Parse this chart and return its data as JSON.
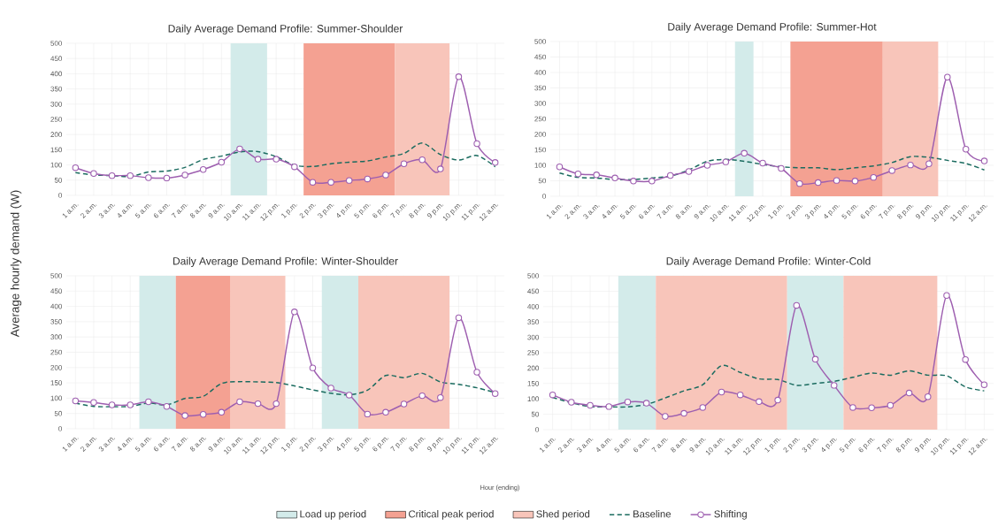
{
  "chart_data": [
    {
      "type": "line",
      "title": "Daily Average Demand Profile: Summer-Shoulder",
      "ylabel": "Average hourly demand (W)",
      "categories": [
        "1 a.m.",
        "2 a.m.",
        "3 a.m.",
        "4 a.m.",
        "5 a.m.",
        "6 a.m.",
        "7 a.m.",
        "8 a.m.",
        "9 a.m.",
        "10 a.m.",
        "11 a.m.",
        "12 p.m.",
        "1 p.m.",
        "2 p.m.",
        "3 p.m.",
        "4 p.m.",
        "5 p.m.",
        "6 p.m.",
        "7 p.m.",
        "8 p.m.",
        "9 p.m.",
        "10 p.m.",
        "11 p.m.",
        "12 a.m."
      ],
      "series": [
        {
          "name": "Baseline",
          "color": "#1a6b5f",
          "line_style": "dashed",
          "marker": "none",
          "values": [
            75,
            67,
            65,
            62,
            77,
            80,
            92,
            118,
            129,
            143,
            144,
            127,
            99,
            95,
            104,
            109,
            113,
            126,
            138,
            172,
            134,
            116,
            131,
            94
          ]
        },
        {
          "name": "Shifting",
          "color": "#9e5fb0",
          "line_style": "solid",
          "marker": "circle",
          "values": [
            91,
            72,
            65,
            65,
            58,
            57,
            67,
            85,
            109,
            153,
            119,
            119,
            94,
            43,
            43,
            49,
            54,
            67,
            104,
            117,
            87,
            390,
            170,
            108
          ]
        }
      ],
      "bands": [
        {
          "axis": "x",
          "from": "10 a.m.",
          "to": "11 a.m.",
          "label": "Load up period",
          "color": "#d3ebea"
        },
        {
          "axis": "x",
          "from": "2 p.m.",
          "to": "6 p.m.",
          "label": "Critical peak period",
          "color": "#f4a192"
        },
        {
          "axis": "x",
          "from": "7 p.m.",
          "to": "9 p.m.",
          "label": "Shed period",
          "color": "#f8c5ba"
        }
      ],
      "ylim": [
        0,
        500
      ],
      "yticks": [
        0,
        50,
        100,
        150,
        200,
        250,
        300,
        350,
        400,
        450,
        500
      ],
      "grid": true,
      "legend": "bottom"
    },
    {
      "type": "line",
      "title": "Daily Average Demand Profile: Summer-Hot",
      "categories": [
        "1 a.m.",
        "2 a.m.",
        "3 a.m.",
        "4 a.m.",
        "5 a.m.",
        "6 a.m.",
        "7 a.m.",
        "8 a.m.",
        "9 a.m.",
        "10 a.m.",
        "11 a.m.",
        "12 p.m.",
        "1 p.m.",
        "2 p.m.",
        "3 p.m.",
        "4 p.m.",
        "5 p.m.",
        "6 p.m.",
        "7 p.m.",
        "8 p.m.",
        "9 p.m.",
        "10 p.m.",
        "11 p.m.",
        "12 a.m."
      ],
      "series": [
        {
          "color": "#1a6b5f",
          "line_style": "dashed",
          "marker": "none",
          "values": [
            75,
            61,
            59,
            54,
            54,
            59,
            65,
            85,
            113,
            119,
            113,
            103,
            95,
            92,
            92,
            86,
            92,
            98,
            109,
            128,
            126,
            116,
            106,
            85
          ]
        },
        {
          "color": "#9e5fb0",
          "line_style": "solid",
          "marker": "circle",
          "values": [
            95,
            72,
            69,
            59,
            49,
            49,
            67,
            80,
            100,
            111,
            139,
            107,
            90,
            41,
            44,
            51,
            49,
            61,
            83,
            101,
            105,
            385,
            152,
            114
          ]
        }
      ],
      "bands": [
        {
          "axis": "x",
          "from": "11 a.m.",
          "to": "11 a.m.",
          "color": "#d3ebea"
        },
        {
          "axis": "x",
          "from": "2 p.m.",
          "to": "6 p.m.",
          "color": "#f4a192"
        },
        {
          "axis": "x",
          "from": "7 p.m.",
          "to": "9 p.m.",
          "color": "#f8c5ba"
        }
      ],
      "ylim": [
        0,
        500
      ],
      "yticks": [
        0,
        50,
        100,
        150,
        200,
        250,
        300,
        350,
        400,
        450,
        500
      ],
      "grid": true
    },
    {
      "type": "line",
      "title": "Daily Average Demand Profile: Winter-Shoulder",
      "xlabel": "Hour (ending)",
      "categories": [
        "1 a.m.",
        "2 a.m.",
        "3 a.m.",
        "4 a.m.",
        "5 a.m.",
        "6 a.m.",
        "7 a.m.",
        "8 a.m.",
        "9 a.m.",
        "10 a.m.",
        "11 a.m.",
        "12 p.m.",
        "1 p.m.",
        "2 p.m.",
        "3 p.m.",
        "4 p.m.",
        "5 p.m.",
        "6 p.m.",
        "7 p.m.",
        "8 p.m.",
        "9 p.m.",
        "10 p.m.",
        "11 p.m.",
        "12 a.m."
      ],
      "series": [
        {
          "color": "#1a6b5f",
          "line_style": "dashed",
          "marker": "none",
          "values": [
            84,
            73,
            72,
            73,
            84,
            78,
            99,
            106,
            148,
            154,
            153,
            151,
            140,
            127,
            116,
            111,
            126,
            174,
            167,
            181,
            153,
            145,
            134,
            118
          ]
        },
        {
          "color": "#9e5fb0",
          "line_style": "solid",
          "marker": "circle",
          "values": [
            91,
            86,
            78,
            78,
            88,
            73,
            43,
            47,
            54,
            88,
            82,
            82,
            382,
            199,
            133,
            110,
            48,
            54,
            81,
            108,
            102,
            363,
            185,
            115
          ]
        }
      ],
      "bands": [
        {
          "axis": "x",
          "from": "5 a.m.",
          "to": "6 a.m.",
          "color": "#d3ebea"
        },
        {
          "axis": "x",
          "from": "7 a.m.",
          "to": "9 a.m.",
          "color": "#f4a192"
        },
        {
          "axis": "x",
          "from": "10 a.m.",
          "to": "12 p.m.",
          "color": "#f8c5ba"
        },
        {
          "axis": "x",
          "from": "3 p.m.",
          "to": "4 p.m.",
          "color": "#d3ebea"
        },
        {
          "axis": "x",
          "from": "5 p.m.",
          "to": "9 p.m.",
          "color": "#f8c5ba"
        }
      ],
      "ylim": [
        0,
        500
      ],
      "yticks": [
        0,
        50,
        100,
        150,
        200,
        250,
        300,
        350,
        400,
        450,
        500
      ],
      "grid": true
    },
    {
      "type": "line",
      "title": "Daily Average Demand Profile: Winter-Cold",
      "categories": [
        "1 a.m.",
        "2 a.m.",
        "3 a.m.",
        "4 a.m.",
        "5 a.m.",
        "6 a.m.",
        "7 a.m.",
        "8 a.m.",
        "9 a.m.",
        "10 a.m.",
        "11 a.m.",
        "12 p.m.",
        "1 p.m.",
        "2 p.m.",
        "3 p.m.",
        "4 p.m.",
        "5 p.m.",
        "6 p.m.",
        "7 p.m.",
        "8 p.m.",
        "9 p.m.",
        "10 p.m.",
        "11 p.m.",
        "12 a.m."
      ],
      "series": [
        {
          "color": "#1a6b5f",
          "line_style": "dashed",
          "marker": "none",
          "values": [
            105,
            87,
            75,
            74,
            74,
            82,
            103,
            126,
            146,
            208,
            186,
            165,
            163,
            144,
            150,
            157,
            170,
            184,
            177,
            191,
            177,
            175,
            139,
            126
          ]
        },
        {
          "color": "#9e5fb0",
          "line_style": "solid",
          "marker": "circle",
          "values": [
            113,
            89,
            79,
            75,
            90,
            86,
            43,
            53,
            72,
            122,
            113,
            91,
            96,
            404,
            229,
            144,
            72,
            71,
            79,
            119,
            107,
            436,
            228,
            146
          ]
        }
      ],
      "bands": [
        {
          "axis": "x",
          "from": "5 a.m.",
          "to": "6 a.m.",
          "color": "#d3ebea"
        },
        {
          "axis": "x",
          "from": "7 a.m.",
          "to": "1 p.m.",
          "color": "#f8c5ba"
        },
        {
          "axis": "x",
          "from": "2 p.m.",
          "to": "4 p.m.",
          "color": "#d3ebea"
        },
        {
          "axis": "x",
          "from": "5 p.m.",
          "to": "9 p.m.",
          "color": "#f8c5ba"
        }
      ],
      "ylim": [
        0,
        500
      ],
      "yticks": [
        0,
        50,
        100,
        150,
        200,
        250,
        300,
        350,
        400,
        450,
        500
      ],
      "grid": true
    }
  ]
}
